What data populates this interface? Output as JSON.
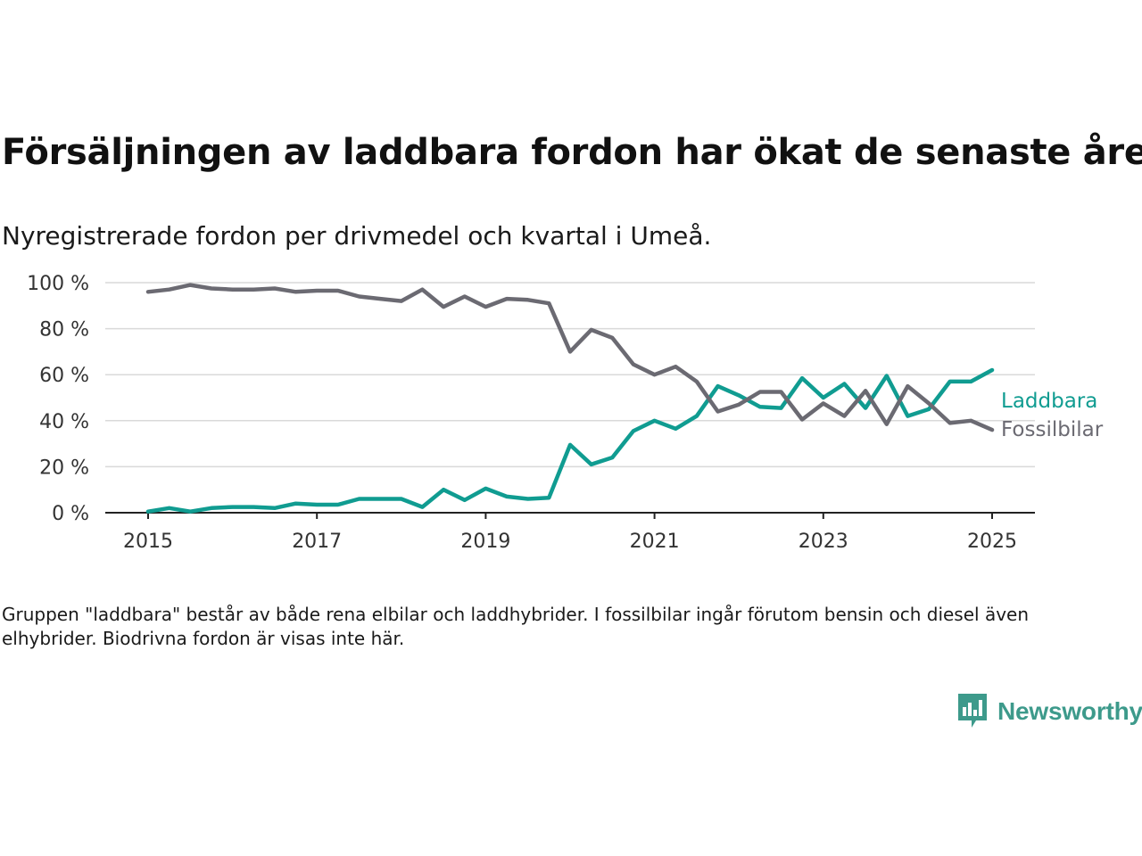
{
  "title": "Försäljningen av laddbara fordon har ökat de senaste åren",
  "subtitle": "Nyregistrerade fordon per drivmedel och kvartal i Umeå.",
  "note": "Gruppen \"laddbara\" består av både rena elbilar och laddhybrider. I fossilbilar ingår förutom bensin och diesel även elhybrider. Biodrivna fordon är visas inte här.",
  "logo": {
    "text": "Newsworthy",
    "color": "#3d9a8b"
  },
  "chart_data": {
    "type": "line",
    "x": [
      2015.0,
      2015.25,
      2015.5,
      2015.75,
      2016.0,
      2016.25,
      2016.5,
      2016.75,
      2017.0,
      2017.25,
      2017.5,
      2017.75,
      2018.0,
      2018.25,
      2018.5,
      2018.75,
      2019.0,
      2019.25,
      2019.5,
      2019.75,
      2020.0,
      2020.25,
      2020.5,
      2020.75,
      2021.0,
      2021.25,
      2021.5,
      2021.75,
      2022.0,
      2022.25,
      2022.5,
      2022.75,
      2023.0,
      2023.25,
      2023.5,
      2023.75,
      2024.0,
      2024.25,
      2024.5,
      2024.75,
      2025.0
    ],
    "series": [
      {
        "name": "Laddbara",
        "color": "#109c91",
        "values": [
          0.5,
          2,
          0.5,
          2,
          2.5,
          2.5,
          2,
          4,
          3.5,
          3.5,
          6,
          6,
          6,
          2.5,
          10,
          5.5,
          10.5,
          7,
          6,
          6.5,
          29.5,
          21,
          24,
          35.5,
          40,
          36.5,
          42,
          55,
          51,
          46,
          45.5,
          58.5,
          50,
          56,
          45.5,
          59.5,
          42,
          45,
          57,
          57,
          62
        ]
      },
      {
        "name": "Fossilbilar",
        "color": "#6b6a72",
        "values": [
          96,
          97,
          99,
          97.5,
          97,
          97,
          97.5,
          96,
          96.5,
          96.5,
          94,
          93,
          92,
          97,
          89.5,
          94,
          89.5,
          93,
          92.5,
          91,
          70,
          79.5,
          76,
          64.5,
          60,
          63.5,
          57,
          44,
          47,
          52.5,
          52.5,
          40.5,
          47.5,
          42,
          53,
          38.5,
          55,
          47.5,
          39,
          40,
          36
        ]
      }
    ],
    "xticks": [
      "2015",
      "2017",
      "2019",
      "2021",
      "2023",
      "2025"
    ],
    "xtick_values": [
      2015,
      2017,
      2019,
      2021,
      2023,
      2025
    ],
    "yticks": [
      "0 %",
      "20 %",
      "40 %",
      "60 %",
      "80 %",
      "100 %"
    ],
    "ytick_values": [
      0,
      20,
      40,
      60,
      80,
      100
    ],
    "xlim": [
      2014.5,
      2025.5
    ],
    "ylim": [
      0,
      100
    ],
    "grid": true,
    "legend": "right"
  }
}
